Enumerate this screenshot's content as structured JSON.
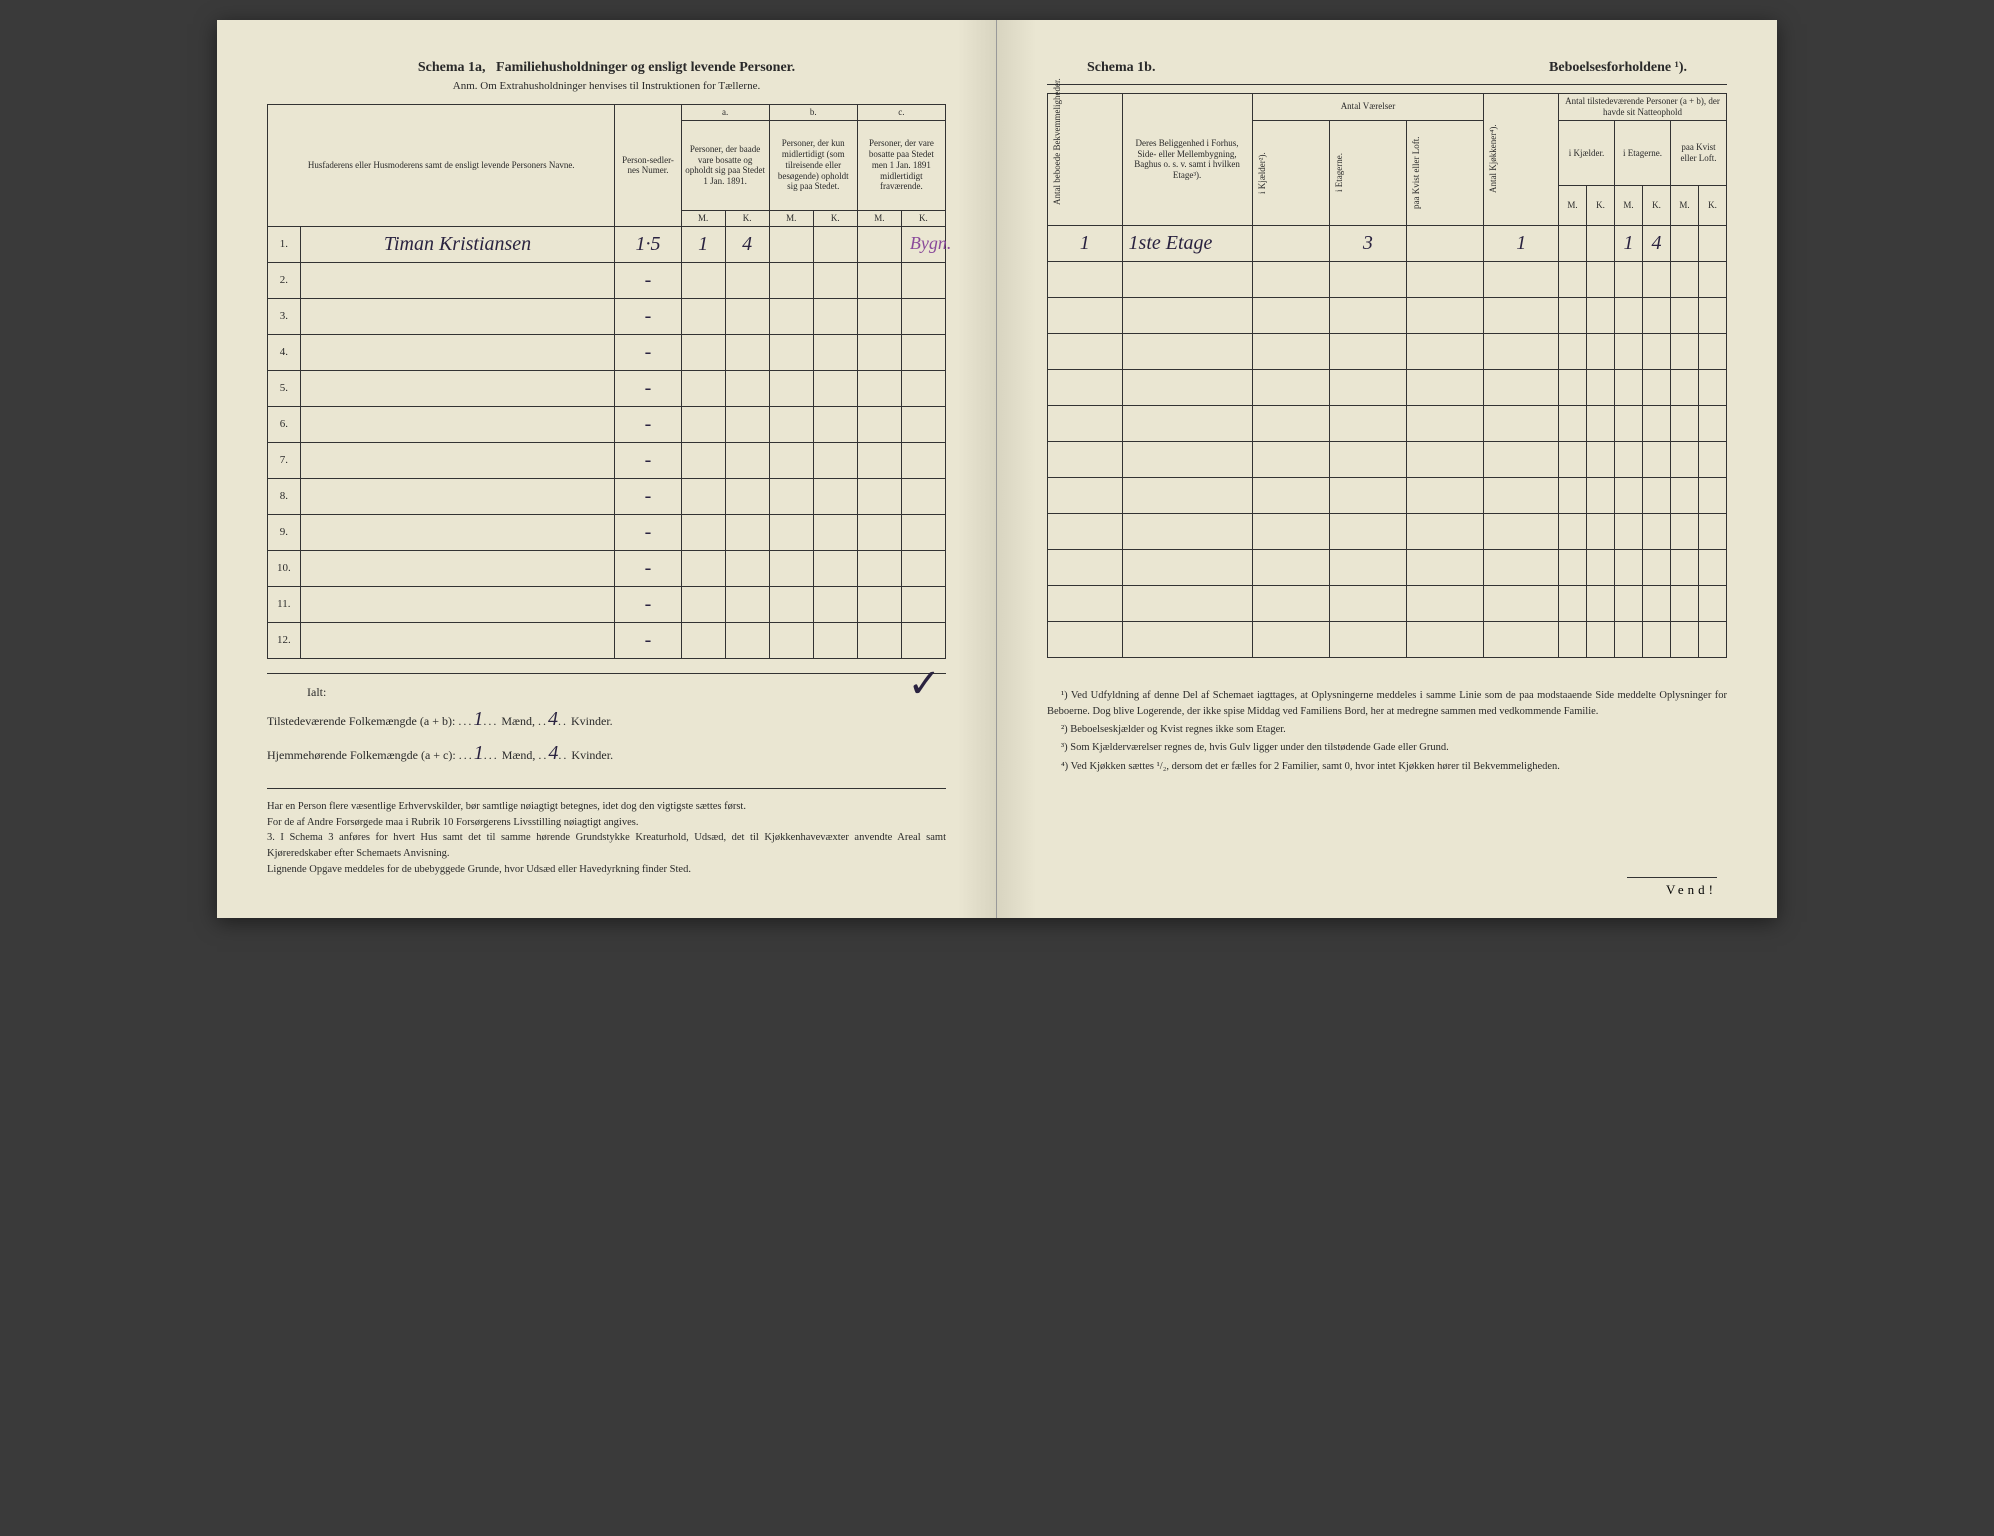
{
  "left": {
    "title_a": "Schema 1a,",
    "title_b": "Familiehusholdninger og ensligt levende Personer.",
    "subtitle": "Anm. Om Extrahusholdninger henvises til Instruktionen for Tællerne.",
    "headers": {
      "name": "Husfaderens eller Husmoderens samt de ensligt levende Personers Navne.",
      "numer": "Person-sedler-nes Numer.",
      "group_a": "a.",
      "group_a_text": "Personer, der baade vare bosatte og opholdt sig paa Stedet 1 Jan. 1891.",
      "group_b": "b.",
      "group_b_text": "Personer, der kun midlertidigt (som tilreisende eller besøgende) opholdt sig paa Stedet.",
      "group_c": "c.",
      "group_c_text": "Personer, der vare bosatte paa Stedet men 1 Jan. 1891 midlertidigt fraværende.",
      "m": "M.",
      "k": "K."
    },
    "rows": [
      {
        "n": "1.",
        "name": "Timan Kristiansen",
        "numer": "1·5",
        "am": "1",
        "ak": "4",
        "bm": "",
        "bk": "",
        "cm": "",
        "ck": "",
        "extra": "Bygn."
      },
      {
        "n": "2.",
        "name": "",
        "numer": "-",
        "am": "",
        "ak": "",
        "bm": "",
        "bk": "",
        "cm": "",
        "ck": ""
      },
      {
        "n": "3.",
        "name": "",
        "numer": "-",
        "am": "",
        "ak": "",
        "bm": "",
        "bk": "",
        "cm": "",
        "ck": ""
      },
      {
        "n": "4.",
        "name": "",
        "numer": "-",
        "am": "",
        "ak": "",
        "bm": "",
        "bk": "",
        "cm": "",
        "ck": ""
      },
      {
        "n": "5.",
        "name": "",
        "numer": "-",
        "am": "",
        "ak": "",
        "bm": "",
        "bk": "",
        "cm": "",
        "ck": ""
      },
      {
        "n": "6.",
        "name": "",
        "numer": "-",
        "am": "",
        "ak": "",
        "bm": "",
        "bk": "",
        "cm": "",
        "ck": ""
      },
      {
        "n": "7.",
        "name": "",
        "numer": "-",
        "am": "",
        "ak": "",
        "bm": "",
        "bk": "",
        "cm": "",
        "ck": ""
      },
      {
        "n": "8.",
        "name": "",
        "numer": "-",
        "am": "",
        "ak": "",
        "bm": "",
        "bk": "",
        "cm": "",
        "ck": ""
      },
      {
        "n": "9.",
        "name": "",
        "numer": "-",
        "am": "",
        "ak": "",
        "bm": "",
        "bk": "",
        "cm": "",
        "ck": ""
      },
      {
        "n": "10.",
        "name": "",
        "numer": "-",
        "am": "",
        "ak": "",
        "bm": "",
        "bk": "",
        "cm": "",
        "ck": ""
      },
      {
        "n": "11.",
        "name": "",
        "numer": "-",
        "am": "",
        "ak": "",
        "bm": "",
        "bk": "",
        "cm": "",
        "ck": ""
      },
      {
        "n": "12.",
        "name": "",
        "numer": "-",
        "am": "",
        "ak": "",
        "bm": "",
        "bk": "",
        "cm": "",
        "ck": ""
      }
    ],
    "summary": {
      "ialt": "Ialt:",
      "line1_a": "Tilstedeværende Folkemængde (a + b):",
      "line1_m": "1",
      "line1_m_label": "Mænd,",
      "line1_k": "4",
      "line1_k_label": "Kvinder.",
      "line2_a": "Hjemmehørende Folkemængde (a + c):",
      "line2_m": "1",
      "line2_m_label": "Mænd,",
      "line2_k": "4",
      "line2_k_label": "Kvinder."
    },
    "notes": "Har en Person flere væsentlige Erhvervskilder, bør samtlige nøiagtigt betegnes, idet dog den vigtigste sættes først.\n   For de af Andre Forsørgede maa i Rubrik 10 Forsørgerens Livsstilling nøiagtigt angives.\n3. I Schema 3 anføres for hvert Hus samt det til samme hørende Grundstykke Kreaturhold, Udsæd, det til Kjøkkenhavevæxter anvendte Areal samt Kjøreredskaber efter Schemaets Anvisning.\n   Lignende Opgave meddeles for de ubebyggede Grunde, hvor Udsæd eller Havedyrkning finder Sted."
  },
  "right": {
    "title_a": "Schema 1b.",
    "title_b": "Beboelsesforholdene ¹).",
    "headers": {
      "antal_beboede": "Antal beboede Bekvemmeligheder.",
      "beliggenhed": "Deres Beliggenhed i Forhus, Side- eller Mellembygning, Baghus o. s. v. samt i hvilken Etage³).",
      "antal_vaerelser": "Antal Værelser",
      "i_kjaelder": "i Kjælder²).",
      "i_etagerne": "i Etagerne.",
      "paa_kvist": "paa Kvist eller Loft.",
      "antal_kjokkener": "Antal Kjøkkener⁴).",
      "tilstede": "Antal tilstedeværende Personer (a + b), der havde sit Natteophold",
      "i_kjael_der": "i Kjælder.",
      "i_etagerne2": "i Etagerne.",
      "paa_kvist2": "paa Kvist eller Loft.",
      "m": "M.",
      "k": "K."
    },
    "rows": [
      {
        "ab": "1",
        "bel": "1ste Etage",
        "kj": "",
        "et": "3",
        "kv": "",
        "kk": "1",
        "km": "",
        "kkk": "",
        "em": "1",
        "ek": "4",
        "lm": "",
        "lk": ""
      },
      {
        "ab": "",
        "bel": "",
        "kj": "",
        "et": "",
        "kv": "",
        "kk": "",
        "km": "",
        "kkk": "",
        "em": "",
        "ek": "",
        "lm": "",
        "lk": ""
      },
      {
        "ab": "",
        "bel": "",
        "kj": "",
        "et": "",
        "kv": "",
        "kk": "",
        "km": "",
        "kkk": "",
        "em": "",
        "ek": "",
        "lm": "",
        "lk": ""
      },
      {
        "ab": "",
        "bel": "",
        "kj": "",
        "et": "",
        "kv": "",
        "kk": "",
        "km": "",
        "kkk": "",
        "em": "",
        "ek": "",
        "lm": "",
        "lk": ""
      },
      {
        "ab": "",
        "bel": "",
        "kj": "",
        "et": "",
        "kv": "",
        "kk": "",
        "km": "",
        "kkk": "",
        "em": "",
        "ek": "",
        "lm": "",
        "lk": ""
      },
      {
        "ab": "",
        "bel": "",
        "kj": "",
        "et": "",
        "kv": "",
        "kk": "",
        "km": "",
        "kkk": "",
        "em": "",
        "ek": "",
        "lm": "",
        "lk": ""
      },
      {
        "ab": "",
        "bel": "",
        "kj": "",
        "et": "",
        "kv": "",
        "kk": "",
        "km": "",
        "kkk": "",
        "em": "",
        "ek": "",
        "lm": "",
        "lk": ""
      },
      {
        "ab": "",
        "bel": "",
        "kj": "",
        "et": "",
        "kv": "",
        "kk": "",
        "km": "",
        "kkk": "",
        "em": "",
        "ek": "",
        "lm": "",
        "lk": ""
      },
      {
        "ab": "",
        "bel": "",
        "kj": "",
        "et": "",
        "kv": "",
        "kk": "",
        "km": "",
        "kkk": "",
        "em": "",
        "ek": "",
        "lm": "",
        "lk": ""
      },
      {
        "ab": "",
        "bel": "",
        "kj": "",
        "et": "",
        "kv": "",
        "kk": "",
        "km": "",
        "kkk": "",
        "em": "",
        "ek": "",
        "lm": "",
        "lk": ""
      },
      {
        "ab": "",
        "bel": "",
        "kj": "",
        "et": "",
        "kv": "",
        "kk": "",
        "km": "",
        "kkk": "",
        "em": "",
        "ek": "",
        "lm": "",
        "lk": ""
      },
      {
        "ab": "",
        "bel": "",
        "kj": "",
        "et": "",
        "kv": "",
        "kk": "",
        "km": "",
        "kkk": "",
        "em": "",
        "ek": "",
        "lm": "",
        "lk": ""
      }
    ],
    "footnotes": {
      "f1": "¹) Ved Udfyldning af denne Del af Schemaet iagttages, at Oplysningerne meddeles i samme Linie som de paa modstaaende Side meddelte Oplysninger for Beboerne. Dog blive Logerende, der ikke spise Middag ved Familiens Bord, her at medregne sammen med vedkommende Familie.",
      "f2": "²) Beboelseskjælder og Kvist regnes ikke som Etager.",
      "f3": "³) Som Kjælderværelser regnes de, hvis Gulv ligger under den tilstødende Gade eller Grund.",
      "f4": "⁴) Ved Kjøkken sættes ¹/₂, dersom det er fælles for 2 Familier, samt 0, hvor intet Kjøkken hører til Bekvemmeligheden."
    },
    "vend": "Vend!"
  }
}
